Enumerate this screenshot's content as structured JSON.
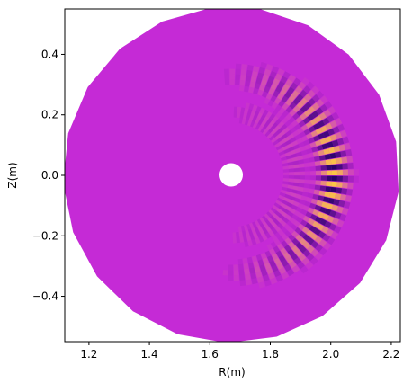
{
  "chart_data": {
    "type": "contour",
    "x_label": "R(m)",
    "y_label": "Z(m)",
    "xlim": [
      1.12,
      2.23
    ],
    "ylim": [
      -0.55,
      0.55
    ],
    "xticks": [
      1.2,
      1.4,
      1.6,
      1.8,
      {
        "value": 2,
        "label": "2.0"
      },
      2.2
    ],
    "yticks": [
      {
        "value": -0.4,
        "label": "−0.4"
      },
      {
        "value": -0.2,
        "label": "−0.2"
      },
      {
        "value": 0,
        "label": "0.0"
      },
      0.2,
      0.4
    ],
    "color": "#c52ad6"
  }
}
